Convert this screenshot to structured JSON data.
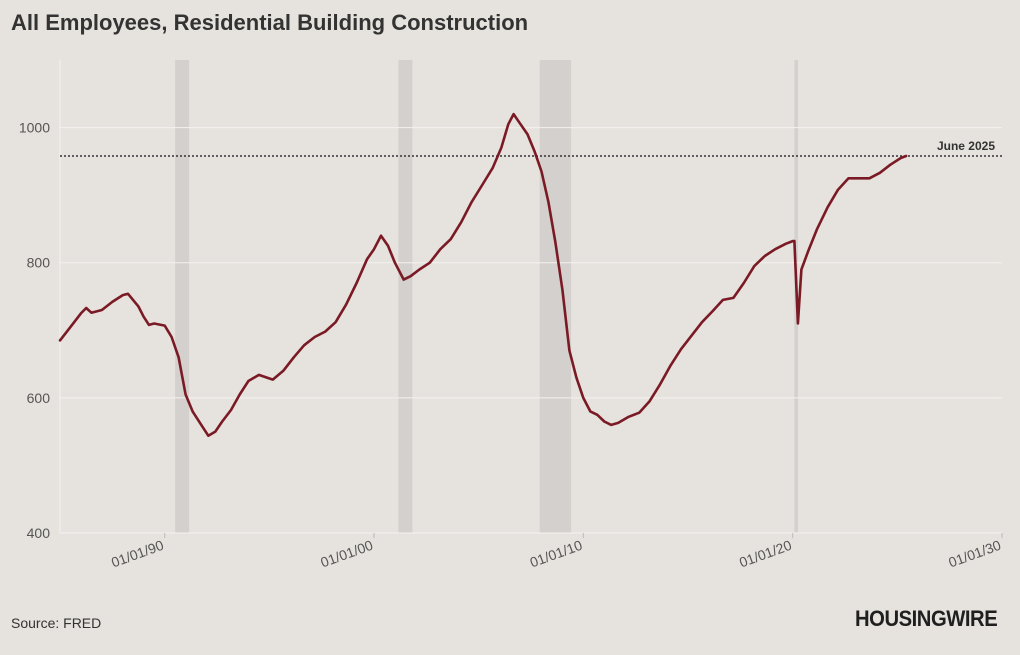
{
  "title": "All Employees, Residential Building Construction",
  "source": "Source: FRED",
  "brand": "HOUSINGWIRE",
  "colors": {
    "background": "#e6e2de",
    "line": "#7a1a24",
    "recession": "#d3d0cd",
    "grid": "#f4f2f0",
    "reference": "#333333"
  },
  "chart_data": {
    "type": "line",
    "title": "All Employees, Residential Building Construction",
    "xlabel": "",
    "ylabel": "",
    "ylim": [
      400,
      1100
    ],
    "xlim": [
      "1985-01-01",
      "2030-01-01"
    ],
    "y_ticks": [
      400,
      600,
      800,
      1000
    ],
    "y_tick_labels": [
      "400",
      "600",
      "800",
      "1000"
    ],
    "x_ticks": [
      "1990-01-01",
      "2000-01-01",
      "2010-01-01",
      "2020-01-01",
      "2030-01-01"
    ],
    "x_tick_labels": [
      "01/01/90",
      "01/01/00",
      "01/01/10",
      "01/01/20",
      "01/01/30"
    ],
    "grid": "horizontal",
    "recessions": [
      {
        "start": "1990-07-01",
        "end": "1991-03-01"
      },
      {
        "start": "2001-03-01",
        "end": "2001-11-01"
      },
      {
        "start": "2007-12-01",
        "end": "2009-06-01"
      },
      {
        "start": "2020-02-01",
        "end": "2020-04-01"
      }
    ],
    "reference_line": {
      "value": 958,
      "label": "June 2025"
    },
    "series": [
      {
        "points": [
          [
            "1985-01-01",
            685
          ],
          [
            "1985-07-01",
            705
          ],
          [
            "1986-01-01",
            725
          ],
          [
            "1986-04-01",
            733
          ],
          [
            "1986-07-01",
            726
          ],
          [
            "1987-01-01",
            730
          ],
          [
            "1987-07-01",
            742
          ],
          [
            "1988-01-01",
            752
          ],
          [
            "1988-04-01",
            754
          ],
          [
            "1988-10-01",
            735
          ],
          [
            "1989-01-01",
            720
          ],
          [
            "1989-04-01",
            708
          ],
          [
            "1989-07-01",
            710
          ],
          [
            "1990-01-01",
            707
          ],
          [
            "1990-05-01",
            690
          ],
          [
            "1990-09-01",
            660
          ],
          [
            "1991-01-01",
            605
          ],
          [
            "1991-05-01",
            580
          ],
          [
            "1991-10-01",
            560
          ],
          [
            "1992-02-01",
            544
          ],
          [
            "1992-06-01",
            550
          ],
          [
            "1992-10-01",
            565
          ],
          [
            "1993-03-01",
            582
          ],
          [
            "1993-08-01",
            605
          ],
          [
            "1994-01-01",
            625
          ],
          [
            "1994-07-01",
            634
          ],
          [
            "1995-03-01",
            627
          ],
          [
            "1995-09-01",
            640
          ],
          [
            "1996-03-01",
            660
          ],
          [
            "1996-09-01",
            678
          ],
          [
            "1997-03-01",
            690
          ],
          [
            "1997-09-01",
            698
          ],
          [
            "1998-03-01",
            712
          ],
          [
            "1998-09-01",
            738
          ],
          [
            "1999-03-01",
            770
          ],
          [
            "1999-09-01",
            805
          ],
          [
            "2000-01-01",
            820
          ],
          [
            "2000-05-01",
            840
          ],
          [
            "2000-09-01",
            825
          ],
          [
            "2001-01-01",
            800
          ],
          [
            "2001-06-01",
            775
          ],
          [
            "2001-10-01",
            780
          ],
          [
            "2002-03-01",
            790
          ],
          [
            "2002-09-01",
            800
          ],
          [
            "2003-03-01",
            820
          ],
          [
            "2003-09-01",
            835
          ],
          [
            "2004-03-01",
            860
          ],
          [
            "2004-09-01",
            890
          ],
          [
            "2005-03-01",
            915
          ],
          [
            "2005-09-01",
            940
          ],
          [
            "2006-02-01",
            970
          ],
          [
            "2006-06-01",
            1005
          ],
          [
            "2006-09-01",
            1020
          ],
          [
            "2007-01-01",
            1005
          ],
          [
            "2007-05-01",
            990
          ],
          [
            "2007-09-01",
            965
          ],
          [
            "2008-01-01",
            935
          ],
          [
            "2008-05-01",
            890
          ],
          [
            "2008-09-01",
            830
          ],
          [
            "2009-01-01",
            760
          ],
          [
            "2009-05-01",
            670
          ],
          [
            "2009-09-01",
            630
          ],
          [
            "2010-01-01",
            600
          ],
          [
            "2010-05-01",
            580
          ],
          [
            "2010-09-01",
            575
          ],
          [
            "2011-01-01",
            565
          ],
          [
            "2011-05-01",
            560
          ],
          [
            "2011-09-01",
            563
          ],
          [
            "2012-03-01",
            572
          ],
          [
            "2012-09-01",
            578
          ],
          [
            "2013-03-01",
            595
          ],
          [
            "2013-09-01",
            620
          ],
          [
            "2014-03-01",
            648
          ],
          [
            "2014-09-01",
            672
          ],
          [
            "2015-03-01",
            692
          ],
          [
            "2015-09-01",
            712
          ],
          [
            "2016-03-01",
            728
          ],
          [
            "2016-09-01",
            745
          ],
          [
            "2017-03-01",
            748
          ],
          [
            "2017-09-01",
            770
          ],
          [
            "2018-03-01",
            795
          ],
          [
            "2018-09-01",
            810
          ],
          [
            "2019-03-01",
            820
          ],
          [
            "2019-09-01",
            828
          ],
          [
            "2020-01-01",
            832
          ],
          [
            "2020-02-01",
            832
          ],
          [
            "2020-04-01",
            710
          ],
          [
            "2020-06-01",
            790
          ],
          [
            "2020-10-01",
            818
          ],
          [
            "2021-03-01",
            850
          ],
          [
            "2021-09-01",
            882
          ],
          [
            "2022-03-01",
            908
          ],
          [
            "2022-09-01",
            925
          ],
          [
            "2023-03-01",
            925
          ],
          [
            "2023-09-01",
            925
          ],
          [
            "2024-03-01",
            933
          ],
          [
            "2024-09-01",
            945
          ],
          [
            "2025-03-01",
            955
          ],
          [
            "2025-06-01",
            958
          ]
        ]
      }
    ]
  }
}
